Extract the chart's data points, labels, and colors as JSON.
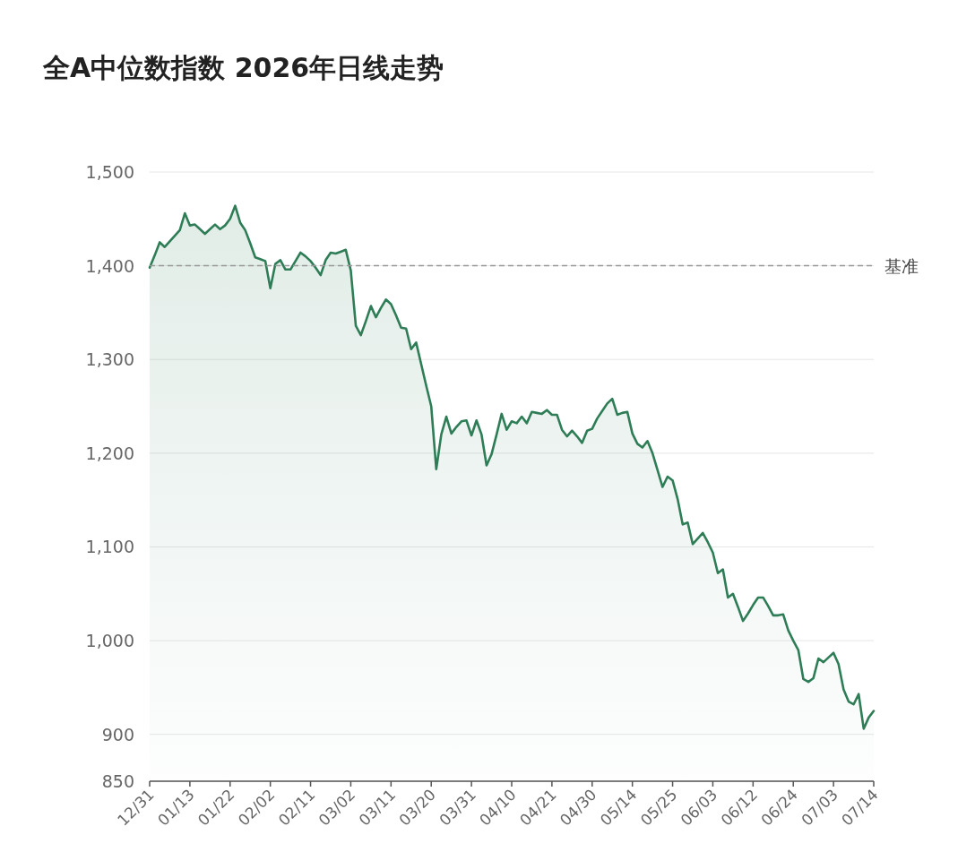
{
  "chart_data": {
    "type": "area",
    "title": "全A中位数指数 2026年日线走势",
    "categories": [
      "12/31",
      null,
      null,
      null,
      null,
      null,
      null,
      null,
      "01/13",
      null,
      null,
      null,
      null,
      null,
      null,
      null,
      "01/22",
      null,
      null,
      null,
      null,
      null,
      null,
      null,
      "02/02",
      null,
      null,
      null,
      null,
      null,
      null,
      null,
      "02/11",
      null,
      null,
      null,
      null,
      null,
      null,
      null,
      "03/02",
      null,
      null,
      null,
      null,
      null,
      null,
      null,
      "03/11",
      null,
      null,
      null,
      null,
      null,
      null,
      null,
      "03/20",
      null,
      null,
      null,
      null,
      null,
      null,
      null,
      "03/31",
      null,
      null,
      null,
      null,
      null,
      null,
      null,
      "04/10",
      null,
      null,
      null,
      null,
      null,
      null,
      null,
      "04/21",
      null,
      null,
      null,
      null,
      null,
      null,
      null,
      "04/30",
      null,
      null,
      null,
      null,
      null,
      null,
      null,
      "05/14",
      null,
      null,
      null,
      null,
      null,
      null,
      null,
      "05/25",
      null,
      null,
      null,
      null,
      null,
      null,
      null,
      "06/03",
      null,
      null,
      null,
      null,
      null,
      null,
      null,
      "06/12",
      null,
      null,
      null,
      null,
      null,
      null,
      null,
      "06/24",
      null,
      null,
      null,
      null,
      null,
      null,
      null,
      "07/03",
      null,
      null,
      null,
      null,
      null,
      null,
      null,
      "07/14"
    ],
    "series": [
      {
        "color": "#2e7d57",
        "values": [
          1398,
          1411,
          1425,
          1420,
          1426,
          1432,
          1438,
          1456,
          1443,
          1444,
          1439,
          1434,
          1439,
          1444,
          1439,
          1443,
          1450,
          1464,
          1446,
          1438,
          1424,
          1409,
          1407,
          1405,
          1376,
          1402,
          1406,
          1396,
          1396,
          1405,
          1414,
          1410,
          1405,
          1398,
          1390,
          1406,
          1414,
          1413,
          1415,
          1417,
          1395,
          1336,
          1326,
          1341,
          1357,
          1345,
          1355,
          1364,
          1359,
          1347,
          1334,
          1333,
          1311,
          1318,
          1295,
          1272,
          1250,
          1183,
          1220,
          1239,
          1221,
          1228,
          1234,
          1235,
          1219,
          1235,
          1220,
          1187,
          1199,
          1220,
          1242,
          1225,
          1234,
          1232,
          1239,
          1232,
          1244,
          1243,
          1242,
          1246,
          1241,
          1241,
          1225,
          1218,
          1224,
          1218,
          1211,
          1224,
          1226,
          1237,
          1245,
          1253,
          1258,
          1241,
          1243,
          1244,
          1221,
          1210,
          1206,
          1213,
          1200,
          1182,
          1164,
          1175,
          1171,
          1151,
          1124,
          1126,
          1103,
          1109,
          1115,
          1105,
          1094,
          1072,
          1076,
          1046,
          1050,
          1036,
          1021,
          1029,
          1038,
          1046,
          1046,
          1037,
          1027,
          1027,
          1028,
          1011,
          1000,
          990,
          959,
          956,
          960,
          981,
          977,
          982,
          987,
          975,
          948,
          935,
          932,
          943,
          906,
          918,
          925
        ]
      }
    ],
    "ylim": [
      850,
      1500
    ],
    "yticks": [
      850,
      900,
      {
        "value": 1000,
        "label": "1,000"
      },
      {
        "value": 1100,
        "label": "1,100"
      },
      {
        "value": 1200,
        "label": "1,200"
      },
      {
        "value": 1300,
        "label": "1,300"
      },
      {
        "value": 1400,
        "label": "1,400"
      },
      {
        "value": 1500,
        "label": "1,500"
      }
    ],
    "ref_lines": [
      {
        "axis": "y",
        "value": 1400,
        "label": "基准",
        "color": "#999999",
        "line_style": "dashed"
      }
    ],
    "grid": "y",
    "marker": "none",
    "line_style": "solid"
  }
}
